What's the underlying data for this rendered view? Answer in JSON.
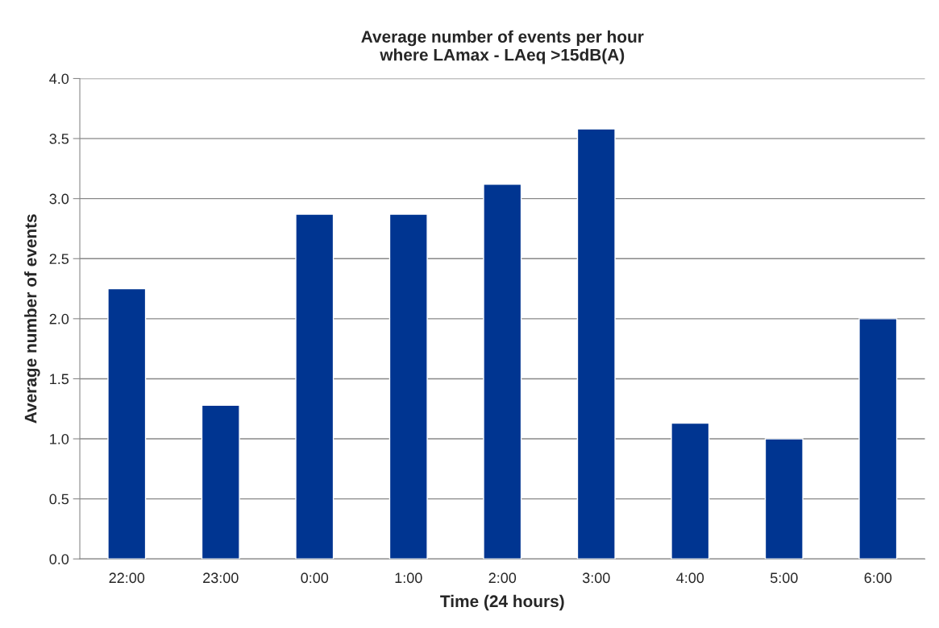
{
  "chart_data": {
    "type": "bar",
    "title": "Average number of events per hour\nwhere LAmax - LAeq >15dB(A)",
    "xlabel": "Time (24 hours)",
    "ylabel": "Average number of events",
    "categories": [
      "22:00",
      "23:00",
      "0:00",
      "1:00",
      "2:00",
      "3:00",
      "4:00",
      "5:00",
      "6:00"
    ],
    "values": [
      2.25,
      1.28,
      2.87,
      2.87,
      3.12,
      3.58,
      1.13,
      1.0,
      2.0
    ],
    "color": "#003591",
    "ylim": [
      0,
      4
    ],
    "yticks": [
      {
        "value": 0,
        "label": "0.0"
      },
      {
        "value": 0.5,
        "label": "0.5"
      },
      {
        "value": 1,
        "label": "1.0"
      },
      {
        "value": 1.5,
        "label": "1.5"
      },
      {
        "value": 2,
        "label": "2.0"
      },
      {
        "value": 2.5,
        "label": "2.5"
      },
      {
        "value": 3,
        "label": "3.0"
      },
      {
        "value": 3.5,
        "label": "3.5"
      },
      {
        "value": 4,
        "label": "4.0"
      }
    ],
    "grid": "y",
    "legend": false
  }
}
